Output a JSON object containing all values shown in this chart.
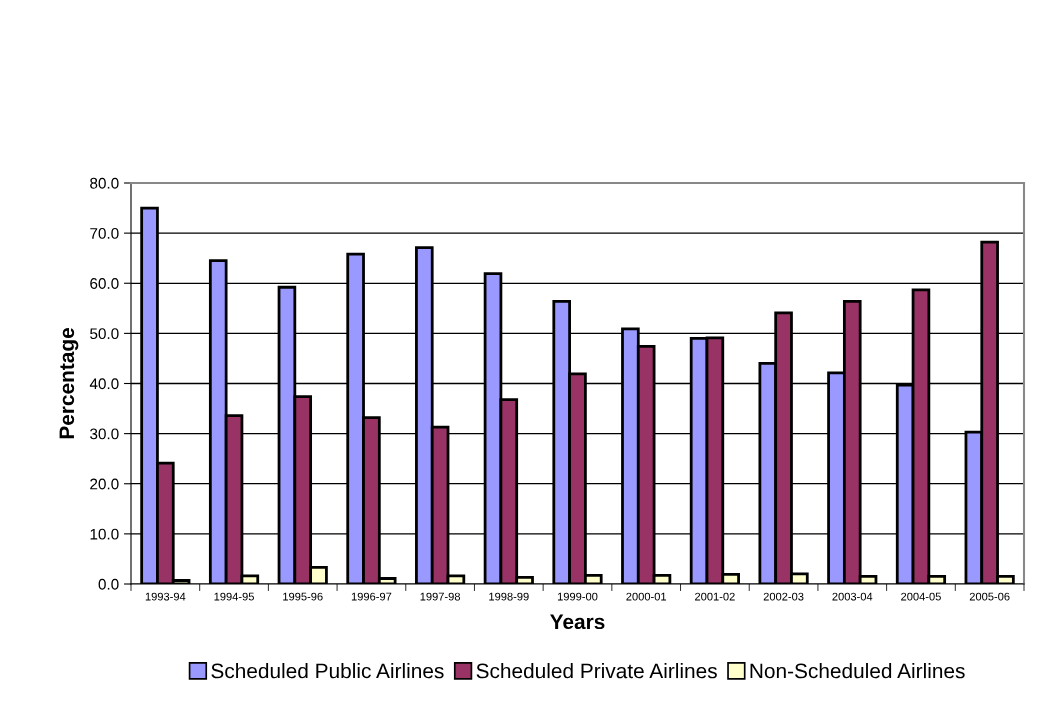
{
  "chart_data": {
    "type": "bar",
    "xlabel": "Years",
    "ylabel": "Percentage",
    "categories": [
      "1993-94",
      "1994-95",
      "1995-96",
      "1996-97",
      "1997-98",
      "1998-99",
      "1999-00",
      "2000-01",
      "2001-02",
      "2002-03",
      "2003-04",
      "2004-05",
      "2005-06"
    ],
    "series": [
      {
        "name": "Scheduled Public Airlines",
        "color": "#9999ff",
        "values": [
          75.0,
          64.5,
          59.2,
          65.8,
          67.1,
          61.9,
          56.4,
          50.9,
          49.0,
          44.0,
          42.1,
          39.7,
          30.3
        ]
      },
      {
        "name": "Scheduled Private Airlines",
        "color": "#993366",
        "values": [
          24.1,
          33.6,
          37.4,
          33.2,
          31.3,
          36.8,
          41.9,
          47.4,
          49.1,
          54.1,
          56.4,
          58.7,
          68.2
        ]
      },
      {
        "name": "Non-Scheduled Airlines",
        "color": "#ffffcc",
        "values": [
          0.7,
          1.6,
          3.3,
          1.1,
          1.6,
          1.3,
          1.7,
          1.7,
          1.9,
          2.0,
          1.5,
          1.5,
          1.5
        ]
      }
    ],
    "ylim": [
      0,
      80
    ],
    "yticks": [
      {
        "value": 0,
        "label": "0.0"
      },
      {
        "value": 10,
        "label": "10.0"
      },
      {
        "value": 20,
        "label": "20.0"
      },
      {
        "value": 30,
        "label": "30.0"
      },
      {
        "value": 40,
        "label": "40.0"
      },
      {
        "value": 50,
        "label": "50.0"
      },
      {
        "value": 60,
        "label": "60.0"
      },
      {
        "value": 70,
        "label": "70.0"
      },
      {
        "value": 80,
        "label": "80.0"
      }
    ],
    "grid": "y",
    "legend": "bottom"
  }
}
